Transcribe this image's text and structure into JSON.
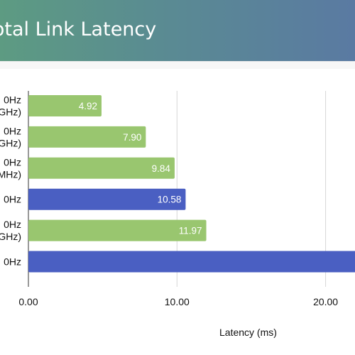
{
  "header": {
    "title": "Total Link Latency"
  },
  "chart_data": {
    "type": "bar",
    "orientation": "horizontal",
    "title": "Total Link Latency",
    "xlabel": "Latency (ms)",
    "ylabel": "",
    "xlim": [
      0,
      22.5
    ],
    "xticks": [
      0,
      10,
      20
    ],
    "xtick_labels": [
      "0.00",
      "10.00",
      "20.00"
    ],
    "grid": true,
    "categories": [
      [
        "0Hz",
        "GHz)"
      ],
      [
        "0Hz",
        "GHz)"
      ],
      [
        "0Hz",
        "MHz)"
      ],
      [
        "0Hz"
      ],
      [
        "0Hz",
        "GHz)"
      ],
      [
        "0Hz"
      ]
    ],
    "values": [
      4.92,
      7.9,
      9.84,
      10.58,
      11.97,
      22.6
    ],
    "data_labels": [
      "4.92",
      "7.90",
      "9.84",
      "10.58",
      "11.97",
      ""
    ],
    "bar_colors": [
      "#99c66f",
      "#99c66f",
      "#99c66f",
      "#4a5fc2",
      "#99c66f",
      "#4a5fc2"
    ]
  }
}
